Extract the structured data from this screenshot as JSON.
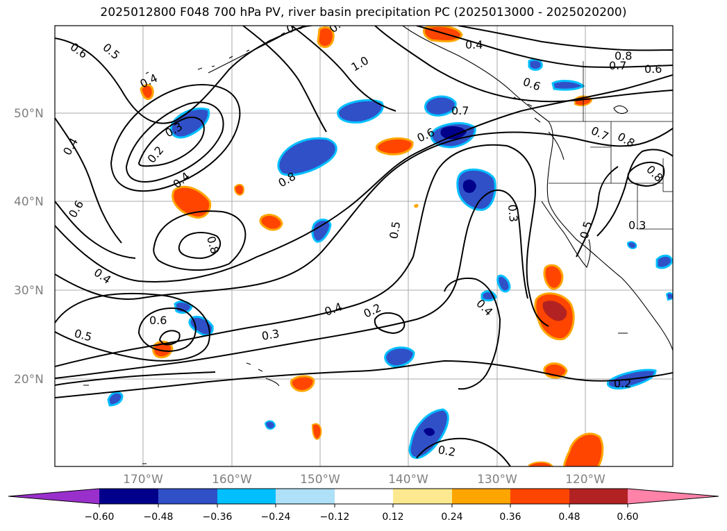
{
  "title": "2025012800 F048 700 hPa PV, river basin precipitation PC (2025013000 - 2025020200)",
  "lat_labels": [
    "50°N",
    "40°N",
    "30°N",
    "20°N"
  ],
  "lon_labels": [
    "170°W",
    "160°W",
    "150°W",
    "140°W",
    "130°W",
    "120°W"
  ],
  "colorbar": {
    "colors": [
      "#9a30cc",
      "#00008b",
      "#3050c8",
      "#00bfff",
      "#aee0f8",
      "#ffffff",
      "#fce98f",
      "#ffa500",
      "#ff4500",
      "#b22222",
      "#ff82a9"
    ],
    "tick_labels": [
      "−0.60",
      "−0.48",
      "−0.36",
      "−0.24",
      "−0.12",
      "0.12",
      "0.24",
      "0.36",
      "0.48",
      "0.60"
    ]
  },
  "contour_labels": [
    "0.6",
    "0.5",
    "0.4",
    "0.3",
    "0.2",
    "0.4",
    "0.6",
    "0.4",
    "0.3",
    "1.0",
    "0.4",
    "0.8",
    "0.7",
    "0.6",
    "0.6",
    "0.7",
    "0.8",
    "0.7",
    "0.8",
    "0.6",
    "0.8",
    "0.8",
    "0.5",
    "0.3",
    "0.5",
    "0.3",
    "0.4",
    "0.4",
    "0.6",
    "0.5",
    "0.3",
    "0.4",
    "0.2",
    "0.2",
    "0.2",
    "0.2"
  ]
}
